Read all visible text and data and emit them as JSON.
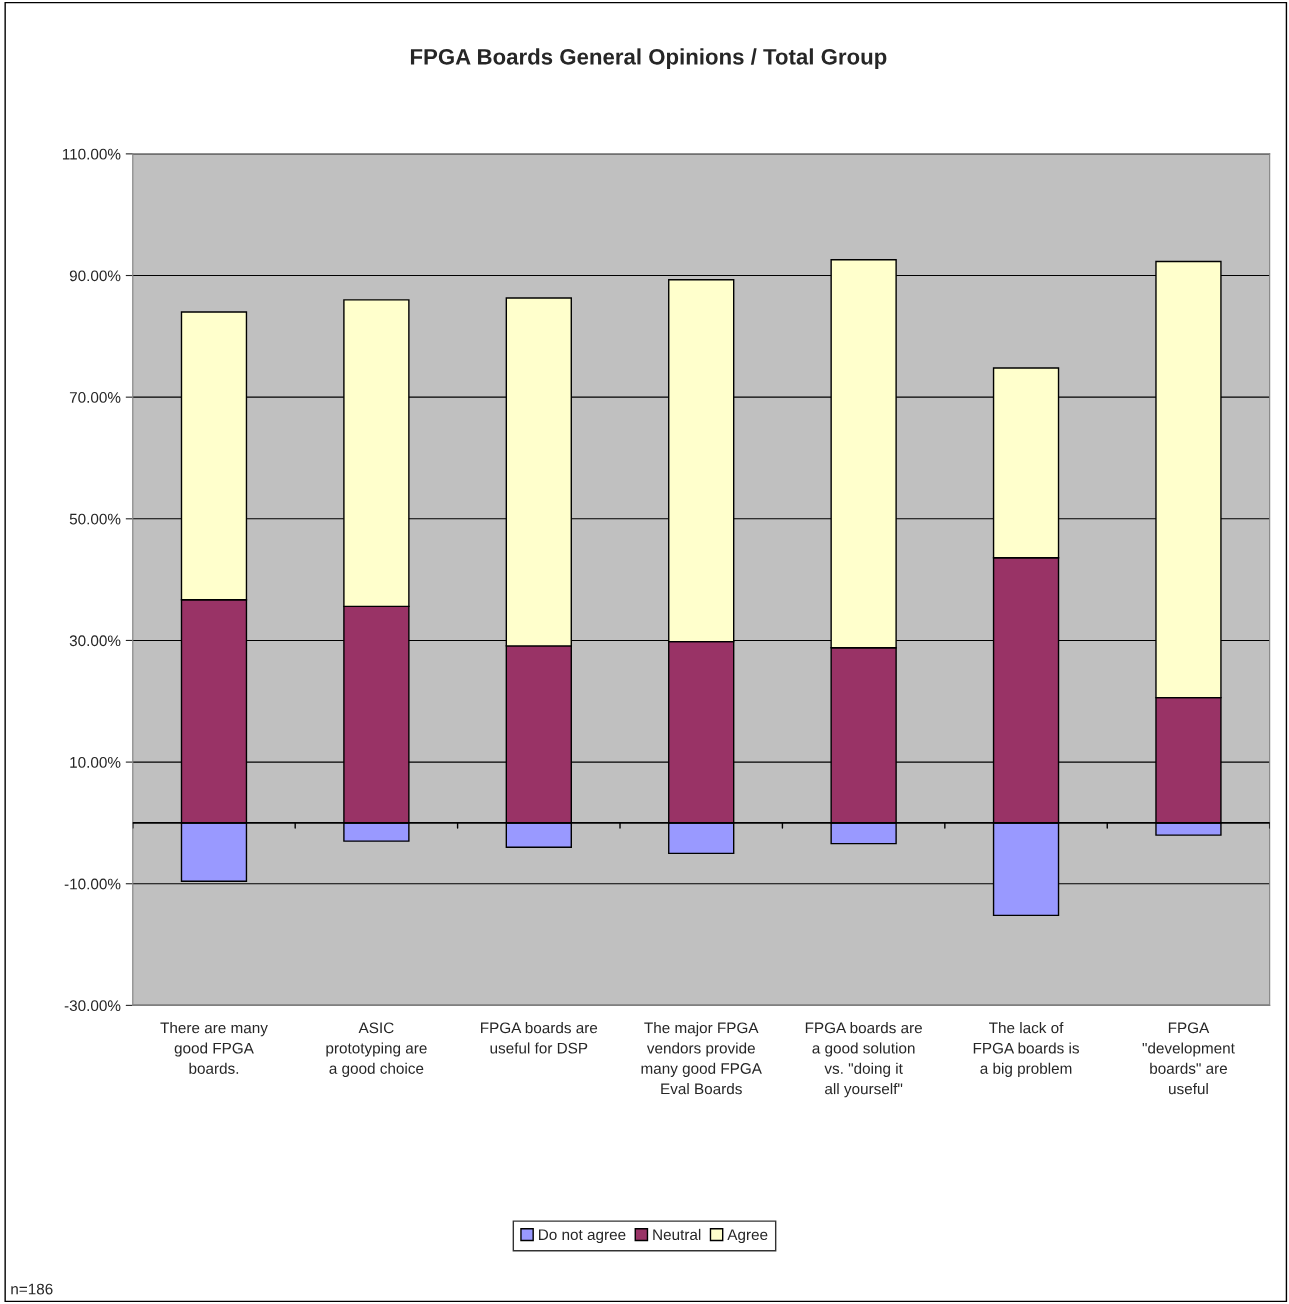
{
  "chart_data": {
    "type": "bar",
    "title": "FPGA Boards General Opinions / Total Group",
    "categories": [
      "There are many good FPGA boards.",
      "ASIC prototyping are a good choice",
      "FPGA boards are useful for DSP",
      "The major FPGA vendors provide many good FPGA Eval Boards",
      "FPGA boards are a good solution vs. \"doing it all yourself\"",
      "The lack of FPGA boards is a big problem",
      "FPGA \"development boards\" are useful"
    ],
    "series": [
      {
        "name": "Do not agree",
        "color": "#9999ff",
        "values": [
          -9.6,
          -3.0,
          -4.0,
          -5.0,
          -3.4,
          -15.2,
          -2.0
        ]
      },
      {
        "name": "Neutral",
        "color": "#993366",
        "values": [
          36.7,
          35.6,
          29.1,
          29.8,
          28.8,
          43.6,
          20.6
        ]
      },
      {
        "name": "Agree",
        "color": "#ffffcc",
        "values": [
          47.3,
          50.4,
          57.2,
          59.5,
          63.8,
          31.2,
          71.7
        ]
      }
    ],
    "stacked": true,
    "ylim": [
      -30,
      110
    ],
    "yticks": [
      {
        "value": -30,
        "label": "-30.00%"
      },
      {
        "value": -10,
        "label": "-10.00%"
      },
      {
        "value": 10,
        "label": "10.00%"
      },
      {
        "value": 30,
        "label": "30.00%"
      },
      {
        "value": 50,
        "label": "50.00%"
      },
      {
        "value": 70,
        "label": "70.00%"
      },
      {
        "value": 90,
        "label": "90.00%"
      },
      {
        "value": 110,
        "label": "110.00%"
      }
    ],
    "grid": "y",
    "legend": "bottom",
    "annotations": [
      "n=186"
    ]
  }
}
